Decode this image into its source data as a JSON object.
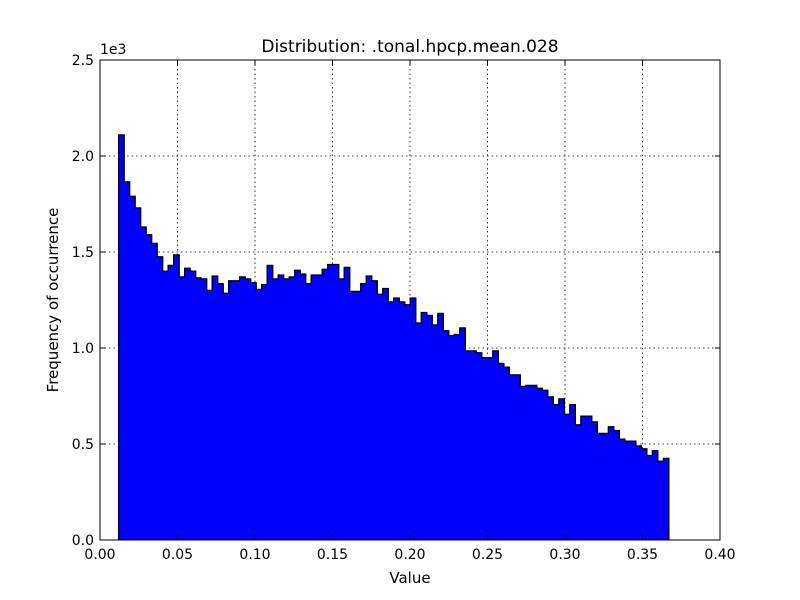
{
  "chart_data": {
    "type": "bar",
    "title": "Distribution: .tonal.hpcp.mean.028",
    "xlabel": "Value",
    "ylabel": "Frequency of occurrence",
    "y_multiplier": "1e3",
    "xlim": [
      0.0,
      0.4
    ],
    "ylim": [
      0,
      2500
    ],
    "grid": true,
    "bar_color": "#0000ff",
    "x_ticks": [
      "0.00",
      "0.05",
      "0.10",
      "0.15",
      "0.20",
      "0.25",
      "0.30",
      "0.35",
      "0.40"
    ],
    "y_ticks": [
      "0.0",
      "0.5",
      "1.0",
      "1.5",
      "2.0",
      "2.5"
    ],
    "bin_start": 0.012,
    "bin_width": 0.00355,
    "values": [
      2110,
      1865,
      1790,
      1730,
      1630,
      1590,
      1545,
      1475,
      1400,
      1430,
      1485,
      1370,
      1415,
      1400,
      1365,
      1360,
      1300,
      1375,
      1335,
      1285,
      1350,
      1350,
      1370,
      1360,
      1340,
      1305,
      1330,
      1430,
      1360,
      1380,
      1360,
      1370,
      1405,
      1385,
      1335,
      1380,
      1380,
      1410,
      1435,
      1435,
      1360,
      1420,
      1295,
      1295,
      1335,
      1375,
      1350,
      1280,
      1310,
      1240,
      1260,
      1240,
      1225,
      1260,
      1130,
      1185,
      1170,
      1120,
      1180,
      1090,
      1065,
      1070,
      1105,
      985,
      985,
      975,
      950,
      950,
      985,
      920,
      900,
      860,
      860,
      800,
      805,
      805,
      790,
      780,
      745,
      705,
      735,
      655,
      705,
      600,
      645,
      645,
      615,
      555,
      555,
      590,
      570,
      525,
      515,
      515,
      490,
      475,
      440,
      465,
      410,
      425
    ]
  }
}
